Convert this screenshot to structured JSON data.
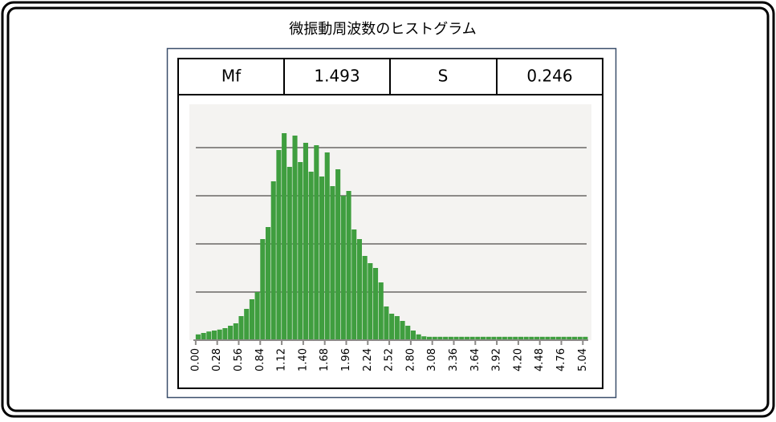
{
  "title": "微振動周波数のヒストグラム",
  "stats": [
    "Mf",
    "1.493",
    "S",
    "0.246"
  ],
  "chart_data": {
    "type": "histogram",
    "color": "#3f9e3f",
    "grid": true,
    "bins": [
      0,
      0.07,
      0.14,
      0.21,
      0.28,
      0.35,
      0.42,
      0.49,
      0.56,
      0.63,
      0.7,
      0.77,
      0.84,
      0.91,
      0.98,
      1.05,
      1.12,
      1.19,
      1.26,
      1.33,
      1.4,
      1.47,
      1.54,
      1.61,
      1.68,
      1.75,
      1.82,
      1.89,
      1.96,
      2.03,
      2.1,
      2.17,
      2.24,
      2.31,
      2.38,
      2.45,
      2.52,
      2.59,
      2.66,
      2.73,
      2.8,
      2.87,
      2.94,
      3.01,
      3.08,
      3.15,
      3.22,
      3.29,
      3.36,
      3.43,
      3.5,
      3.57,
      3.64,
      3.71,
      3.78,
      3.85,
      3.92,
      3.99,
      4.06,
      4.13,
      4.2,
      4.27,
      4.34,
      4.41,
      4.48,
      4.55,
      4.62,
      4.69,
      4.76,
      4.83,
      4.9,
      4.97,
      5.04,
      5.11
    ],
    "values": [
      0.12,
      0.15,
      0.18,
      0.2,
      0.22,
      0.25,
      0.3,
      0.35,
      0.5,
      0.65,
      0.85,
      1.0,
      2.1,
      2.35,
      3.3,
      3.95,
      4.3,
      3.6,
      4.25,
      3.7,
      4.1,
      3.5,
      4.05,
      3.4,
      3.9,
      3.2,
      3.55,
      3.0,
      3.1,
      2.3,
      2.1,
      1.75,
      1.6,
      1.5,
      1.2,
      0.7,
      0.55,
      0.5,
      0.4,
      0.3,
      0.2,
      0.12,
      0.08,
      0.07,
      0.07,
      0.07,
      0.07,
      0.07,
      0.07,
      0.07,
      0.07,
      0.07,
      0.07,
      0.07,
      0.07,
      0.07,
      0.07,
      0.07,
      0.07,
      0.07,
      0.07,
      0.07,
      0.07,
      0.07,
      0.07,
      0.07,
      0.07,
      0.07,
      0.07,
      0.07,
      0.07,
      0.07,
      0.07
    ],
    "xlim": [
      -0.03,
      5.11
    ],
    "xticks": [
      {
        "value": 0,
        "label": "0.00"
      },
      {
        "value": 0.28,
        "label": "0.28"
      },
      {
        "value": 0.56,
        "label": "0.56"
      },
      {
        "value": 0.84,
        "label": "0.84"
      },
      {
        "value": 1.12,
        "label": "1.12"
      },
      {
        "value": 1.4,
        "label": "1.40"
      },
      {
        "value": 1.68,
        "label": "1.68"
      },
      {
        "value": 1.96,
        "label": "1.96"
      },
      {
        "value": 2.24,
        "label": "2.24"
      },
      {
        "value": 2.52,
        "label": "2.52"
      },
      {
        "value": 2.8,
        "label": "2.80"
      },
      {
        "value": 3.08,
        "label": "3.08"
      },
      {
        "value": 3.36,
        "label": "3.36"
      },
      {
        "value": 3.64,
        "label": "3.64"
      },
      {
        "value": 3.92,
        "label": "3.92"
      },
      {
        "value": 4.2,
        "label": "4.20"
      },
      {
        "value": 4.48,
        "label": "4.48"
      },
      {
        "value": 4.76,
        "label": "4.76"
      },
      {
        "value": 5.04,
        "label": "5.04"
      }
    ],
    "ylim": [
      0,
      4.9
    ],
    "yticks": [
      1,
      2,
      3,
      4
    ]
  }
}
